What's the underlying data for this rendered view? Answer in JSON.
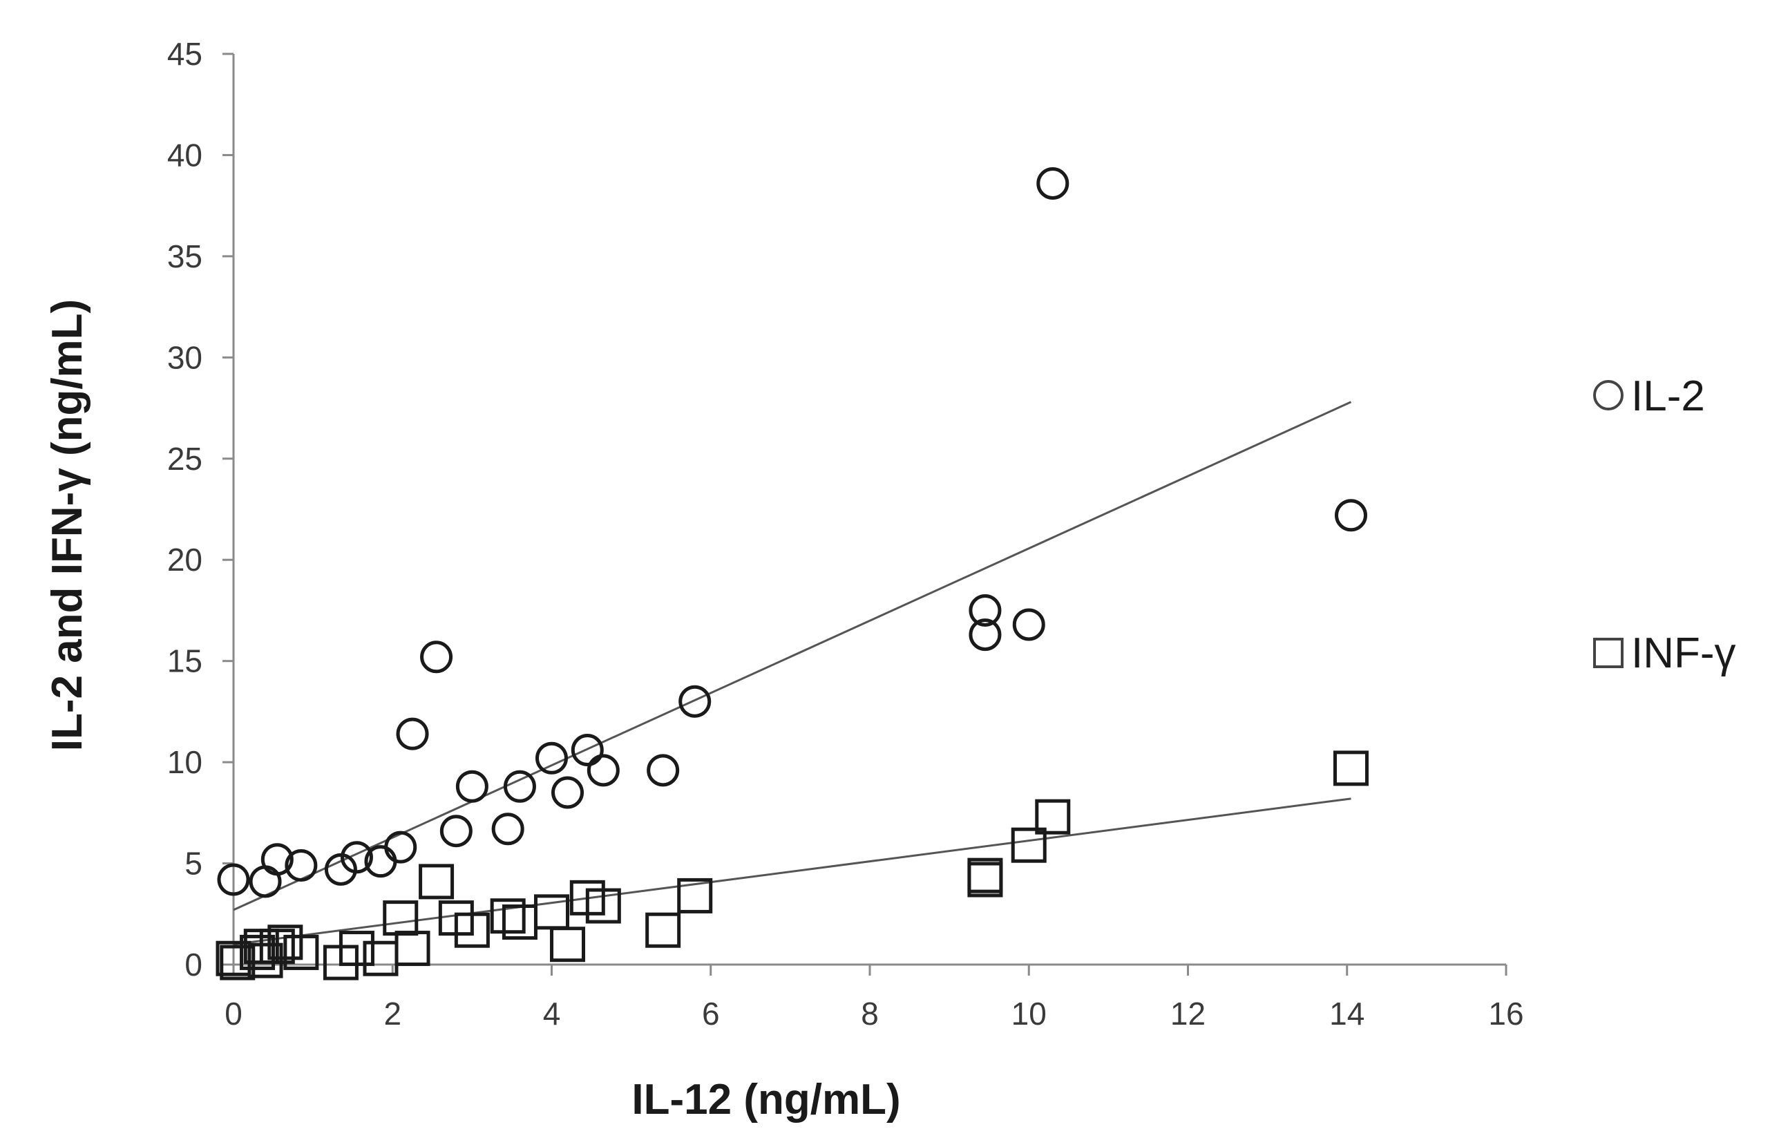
{
  "chart_data": {
    "type": "scatter",
    "title": "",
    "xlabel": "IL-12 (ng/mL)",
    "ylabel": "IL-2 and IFN-γ (ng/mL)",
    "xlim": [
      0,
      16
    ],
    "ylim": [
      0,
      45
    ],
    "x_ticks": [
      "0",
      "2",
      "4",
      "6",
      "8",
      "10",
      "12",
      "14",
      "16"
    ],
    "y_ticks": [
      "0",
      "5",
      "10",
      "15",
      "20",
      "25",
      "30",
      "35",
      "40",
      "45"
    ],
    "grid": false,
    "legend_position": "right",
    "series": [
      {
        "name": "IL-2",
        "marker": "circle",
        "color": "#1a1a1a",
        "points": [
          [
            0.0,
            4.2
          ],
          [
            0.4,
            4.1
          ],
          [
            0.55,
            5.2
          ],
          [
            0.85,
            4.9
          ],
          [
            1.35,
            4.7
          ],
          [
            1.55,
            5.3
          ],
          [
            1.85,
            5.1
          ],
          [
            2.1,
            5.8
          ],
          [
            2.25,
            11.4
          ],
          [
            2.55,
            15.2
          ],
          [
            2.8,
            6.6
          ],
          [
            3.0,
            8.8
          ],
          [
            3.45,
            6.7
          ],
          [
            3.6,
            8.8
          ],
          [
            4.0,
            10.2
          ],
          [
            4.2,
            8.5
          ],
          [
            4.45,
            10.6
          ],
          [
            4.65,
            9.6
          ],
          [
            5.4,
            9.6
          ],
          [
            5.8,
            13.0
          ],
          [
            9.45,
            16.3
          ],
          [
            9.45,
            17.5
          ],
          [
            10.0,
            16.8
          ],
          [
            10.3,
            38.6
          ],
          [
            14.05,
            22.2
          ]
        ],
        "trendline": [
          [
            0.0,
            2.7
          ],
          [
            14.05,
            27.8
          ]
        ]
      },
      {
        "name": "INF-γ",
        "marker": "square",
        "color": "#1a1a1a",
        "points": [
          [
            0.0,
            0.3
          ],
          [
            0.05,
            0.1
          ],
          [
            0.3,
            0.6
          ],
          [
            0.35,
            0.9
          ],
          [
            0.4,
            0.2
          ],
          [
            0.55,
            0.9
          ],
          [
            0.65,
            1.1
          ],
          [
            0.85,
            0.6
          ],
          [
            1.35,
            0.1
          ],
          [
            1.55,
            0.8
          ],
          [
            1.85,
            0.3
          ],
          [
            2.1,
            2.3
          ],
          [
            2.25,
            0.8
          ],
          [
            2.55,
            4.1
          ],
          [
            2.8,
            2.3
          ],
          [
            3.0,
            1.7
          ],
          [
            3.45,
            2.4
          ],
          [
            3.6,
            2.1
          ],
          [
            4.0,
            2.6
          ],
          [
            4.2,
            1.0
          ],
          [
            4.45,
            3.3
          ],
          [
            4.65,
            2.9
          ],
          [
            5.4,
            1.7
          ],
          [
            5.8,
            3.4
          ],
          [
            9.45,
            4.2
          ],
          [
            9.45,
            4.4
          ],
          [
            10.0,
            5.9
          ],
          [
            10.3,
            7.3
          ],
          [
            14.05,
            9.7
          ]
        ],
        "trendline": [
          [
            0.0,
            1.0
          ],
          [
            14.05,
            8.2
          ]
        ]
      }
    ]
  }
}
